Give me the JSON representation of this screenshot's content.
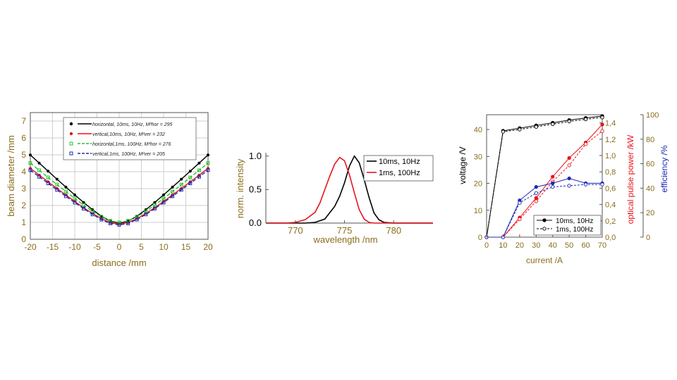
{
  "chart_data": [
    {
      "type": "line",
      "xlabel": "distance /mm",
      "ylabel": "beam diameter /mm",
      "xlim": [
        -20,
        20
      ],
      "ylim": [
        0,
        7.5
      ],
      "x_ticks": [
        "-20",
        "-15",
        "-10",
        "-5",
        "0",
        "5",
        "10",
        "15",
        "20"
      ],
      "y_ticks": [
        "0",
        "1",
        "2",
        "3",
        "4",
        "5",
        "6",
        "7"
      ],
      "grid": true,
      "legend_position": "top-right",
      "legend": [
        {
          "label": "horizontal, 10ms, 10Hz, M²hor = 295",
          "color": "#000000"
        },
        {
          "label": "vertical,10ms, 10Hz, M²ver = 232",
          "color": "#e8141c"
        },
        {
          "label": "horizontal,1ms, 100Hz, M²hor = 276",
          "color": "#22c42a"
        },
        {
          "label": "vertical,1ms, 100Hz, M²ver = 205",
          "color": "#1c2ab4"
        }
      ],
      "series": [
        {
          "name": "horizontal, 10ms, 10Hz",
          "color": "#000000",
          "w0": 0.95,
          "slope": 0.245,
          "x": [
            -20,
            -18,
            -16,
            -14,
            -12,
            -10,
            -8,
            -6,
            -4,
            -2,
            0,
            2,
            4,
            6,
            8,
            10,
            12,
            14,
            16,
            18,
            20
          ]
        },
        {
          "name": "vertical,10ms, 10Hz",
          "color": "#e8141c",
          "w0": 0.9,
          "slope": 0.205,
          "x": [
            -20,
            -18,
            -16,
            -14,
            -12,
            -10,
            -8,
            -6,
            -4,
            -2,
            0,
            2,
            4,
            6,
            8,
            10,
            12,
            14,
            16,
            18,
            20
          ]
        },
        {
          "name": "horizontal,1ms, 100Hz",
          "color": "#22c42a",
          "w0": 1.0,
          "slope": 0.22,
          "x": [
            -20,
            -18,
            -16,
            -14,
            -12,
            -10,
            -8,
            -6,
            -4,
            -2,
            0,
            2,
            4,
            6,
            8,
            10,
            12,
            14,
            16,
            18,
            20
          ]
        },
        {
          "name": "vertical,1ms, 100Hz",
          "color": "#1c2ab4",
          "w0": 0.85,
          "slope": 0.2,
          "x": [
            -20,
            -18,
            -16,
            -14,
            -12,
            -10,
            -8,
            -6,
            -4,
            -2,
            0,
            2,
            4,
            6,
            8,
            10,
            12,
            14,
            16,
            18,
            20
          ]
        }
      ]
    },
    {
      "type": "line",
      "xlabel": "wavelength /nm",
      "ylabel": "norm. intensity",
      "xlim": [
        767,
        784
      ],
      "ylim": [
        0,
        1.05
      ],
      "x_ticks": [
        "770",
        "775",
        "780"
      ],
      "y_ticks": [
        "0.0",
        "0.5",
        "1.0"
      ],
      "grid": false,
      "legend_position": "top-right",
      "series": [
        {
          "name": "10ms, 10Hz",
          "color": "#000000",
          "x": [
            767,
            771,
            772,
            773,
            774,
            774.5,
            775,
            775.5,
            776,
            776.5,
            777,
            777.5,
            778,
            778.5,
            779,
            780,
            784
          ],
          "y": [
            0,
            0,
            0.01,
            0.06,
            0.25,
            0.4,
            0.6,
            0.85,
            1.0,
            0.9,
            0.65,
            0.38,
            0.15,
            0.05,
            0.01,
            0,
            0
          ]
        },
        {
          "name": "1ms, 100Hz",
          "color": "#e8141c",
          "x": [
            767,
            769,
            770,
            771,
            772,
            772.5,
            773,
            773.5,
            774,
            774.5,
            775,
            775.5,
            776,
            776.5,
            777,
            777.5,
            778,
            784
          ],
          "y": [
            0,
            0,
            0.01,
            0.05,
            0.16,
            0.3,
            0.5,
            0.7,
            0.88,
            0.98,
            0.93,
            0.72,
            0.45,
            0.2,
            0.06,
            0.01,
            0,
            0
          ]
        }
      ]
    },
    {
      "type": "line",
      "xlabel": "current /A",
      "ylabel_left": "voltage /V",
      "ylabel_right1": "optical pulse power /kW",
      "ylabel_right2": "efficiency /%",
      "xlim": [
        0,
        70
      ],
      "x_ticks": [
        "0",
        "10",
        "20",
        "30",
        "40",
        "50",
        "60",
        "70"
      ],
      "voltage_ticks": [
        "0",
        "10",
        "20",
        "30",
        "40"
      ],
      "power_ticks": [
        "0,0",
        "0,2",
        "0,4",
        "0,6",
        "0,8",
        "1,0",
        "1,2",
        "1,4"
      ],
      "efficiency_ticks": [
        "0",
        "20",
        "40",
        "60",
        "80",
        "100"
      ],
      "legend_position": "bottom-right",
      "legend": [
        {
          "label": "10ms, 10Hz",
          "marker": "filled"
        },
        {
          "label": "1ms, 100Hz",
          "marker": "open"
        }
      ],
      "series": [
        {
          "name": "voltage 10ms, 10Hz",
          "axis": "voltage",
          "color": "#000000",
          "marker": "filled",
          "x": [
            0,
            10,
            20,
            30,
            40,
            50,
            60,
            70
          ],
          "y": [
            0,
            39.5,
            40.5,
            41.5,
            42.5,
            43.5,
            44.3,
            45
          ]
        },
        {
          "name": "voltage 1ms, 100Hz",
          "axis": "voltage",
          "color": "#000000",
          "marker": "open",
          "x": [
            0,
            10,
            20,
            30,
            40,
            50,
            60,
            70
          ],
          "y": [
            0,
            39.2,
            40.0,
            41.0,
            42.0,
            43.0,
            43.8,
            44.5
          ]
        },
        {
          "name": "power 10ms, 10Hz",
          "axis": "power",
          "color": "#e8141c",
          "marker": "filled",
          "x": [
            0,
            10,
            20,
            30,
            40,
            50,
            60,
            70
          ],
          "y": [
            0,
            0,
            0.24,
            0.48,
            0.74,
            0.97,
            1.16,
            1.38
          ]
        },
        {
          "name": "power 1ms, 100Hz",
          "axis": "power",
          "color": "#e8141c",
          "marker": "open",
          "x": [
            0,
            10,
            20,
            30,
            40,
            50,
            60,
            70
          ],
          "y": [
            0,
            0,
            0.22,
            0.44,
            0.68,
            0.88,
            1.14,
            1.3
          ]
        },
        {
          "name": "efficiency 10ms, 10Hz",
          "axis": "efficiency",
          "color": "#1c2ab4",
          "marker": "filled",
          "x": [
            0,
            10,
            20,
            30,
            40,
            50,
            60,
            70
          ],
          "y": [
            0,
            0,
            30,
            41,
            44,
            48,
            44,
            44
          ]
        },
        {
          "name": "efficiency 1ms, 100Hz",
          "axis": "efficiency",
          "color": "#1c2ab4",
          "marker": "open",
          "x": [
            0,
            10,
            20,
            30,
            40,
            50,
            60,
            70
          ],
          "y": [
            0,
            0,
            28,
            36,
            41,
            42,
            43,
            43
          ]
        }
      ]
    }
  ]
}
